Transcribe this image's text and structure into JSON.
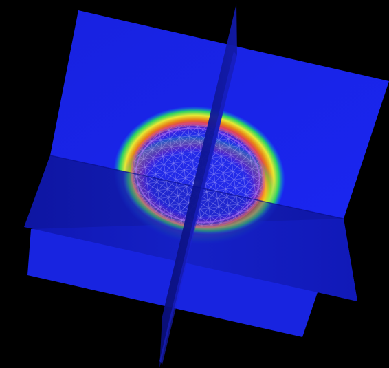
{
  "scene": {
    "background": "#000000",
    "plane_color": "#1a24e6",
    "plane_shadow_color": "#0a12a8",
    "horizontal_plane_color": "#1620c8",
    "contour_colors": [
      "#00ff40",
      "#ffff00",
      "#ff8000",
      "#ff2020",
      "#a000ff"
    ],
    "mesh_color": "#b8b0ff",
    "highlight_color": "#ffffff"
  }
}
